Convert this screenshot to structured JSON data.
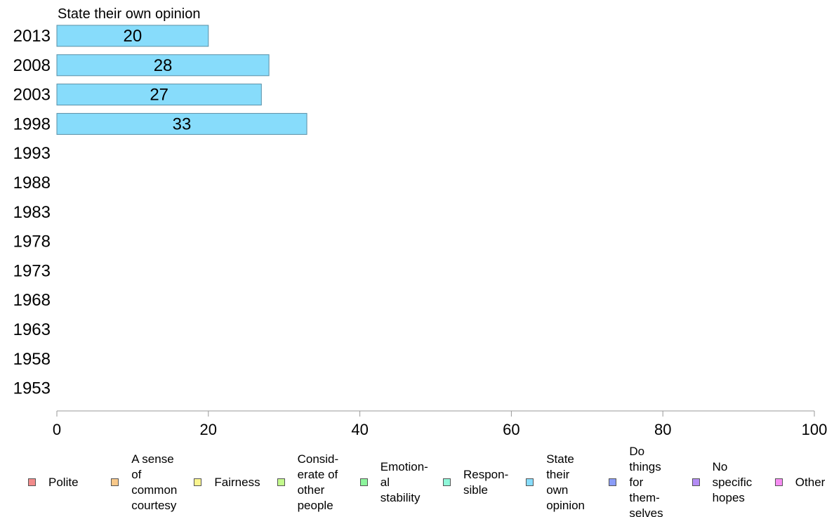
{
  "chart_data": {
    "type": "bar",
    "orientation": "horizontal",
    "title": "State their own opinion",
    "categories": [
      "2013",
      "2008",
      "2003",
      "1998",
      "1993",
      "1988",
      "1983",
      "1978",
      "1973",
      "1968",
      "1963",
      "1958",
      "1953"
    ],
    "series": [
      {
        "name": "State their own opinion",
        "values": [
          20,
          28,
          27,
          33,
          null,
          null,
          null,
          null,
          null,
          null,
          null,
          null,
          null
        ]
      }
    ],
    "data_labels": [
      "20",
      "28",
      "27",
      "33"
    ],
    "xlim": [
      0,
      100
    ],
    "xticks": [
      "0",
      "20",
      "40",
      "60",
      "80",
      "100"
    ],
    "grid": false,
    "bar_color": "#87dcfb",
    "bar_edge_color": "#5a8fa6",
    "axis_color": "#999999",
    "legend_position": "bottom",
    "legend": [
      {
        "label": "Polite",
        "color": "#f28b8b"
      },
      {
        "label": "A sense\nof\ncommon\ncourtesy",
        "color": "#f9c98a"
      },
      {
        "label": "Fairness",
        "color": "#fbf58f"
      },
      {
        "label": "Consid-\nerate of\nother\npeople",
        "color": "#c3f98c"
      },
      {
        "label": "Emotion-\nal\nstability",
        "color": "#8df59d"
      },
      {
        "label": "Respon-\nsible",
        "color": "#8ff7d9"
      },
      {
        "label": "State\ntheir\nown\nopinion",
        "color": "#87dcfb"
      },
      {
        "label": "Do\nthings\nfor\nthem-\nselves",
        "color": "#8a9cf8"
      },
      {
        "label": "No\nspecific\nhopes",
        "color": "#b48cf5"
      },
      {
        "label": "Other",
        "color": "#f68cf2"
      }
    ]
  }
}
